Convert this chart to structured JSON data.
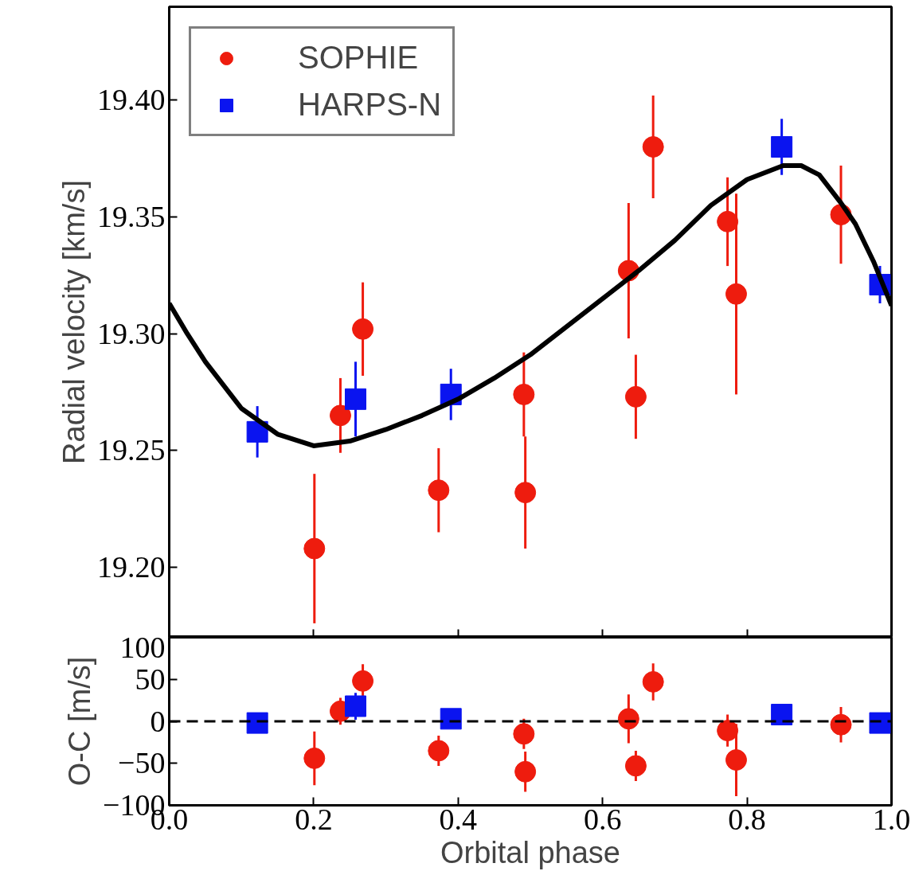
{
  "chart_data": [
    {
      "type": "scatter",
      "ylabel": "Radial velocity [km/s]",
      "xlim": [
        0,
        1
      ],
      "ylim": [
        19.17,
        19.44
      ],
      "xticks": [
        0.2,
        0.4,
        0.6,
        0.8
      ],
      "yticks": [
        {
          "value": 19.2,
          "label": "19.20"
        },
        19.25,
        {
          "value": 19.3,
          "label": "19.30"
        },
        19.35,
        {
          "value": 19.4,
          "label": "19.40"
        }
      ],
      "tick_labels": "y",
      "grid": false,
      "legend": "top left",
      "series": [
        {
          "name": "SOPHIE",
          "color": "#ee1c0e",
          "marker": "circle",
          "x": [
            0.201,
            0.237,
            0.268,
            0.373,
            0.491,
            0.493,
            0.636,
            0.646,
            0.67,
            0.773,
            0.785,
            0.93
          ],
          "values": [
            19.208,
            19.265,
            19.302,
            19.233,
            19.274,
            19.232,
            19.327,
            19.273,
            19.38,
            19.348,
            19.317,
            19.351
          ],
          "errors": [
            0.032,
            0.016,
            0.02,
            0.018,
            0.018,
            0.024,
            0.029,
            0.018,
            0.022,
            0.019,
            0.043,
            0.021
          ]
        },
        {
          "name": "HARPS-N",
          "color": "#0a14f0",
          "marker": "square",
          "x": [
            0.122,
            0.258,
            0.39,
            0.848,
            0.984
          ],
          "values": [
            19.258,
            19.272,
            19.274,
            19.38,
            19.321
          ],
          "errors": [
            0.011,
            0.016,
            0.011,
            0.012,
            0.008
          ]
        },
        {
          "type": "line",
          "color": "#000000",
          "marker": "none",
          "line_style": "solid",
          "x": [
            0,
            0.025,
            0.05,
            0.1,
            0.15,
            0.2,
            0.25,
            0.3,
            0.35,
            0.4,
            0.45,
            0.5,
            0.55,
            0.6,
            0.65,
            0.7,
            0.75,
            0.8,
            0.85,
            0.875,
            0.9,
            0.93,
            0.95,
            0.975,
            1.0
          ],
          "values": [
            19.313,
            19.3,
            19.288,
            19.268,
            19.257,
            19.252,
            19.254,
            19.259,
            19.265,
            19.272,
            19.281,
            19.291,
            19.303,
            19.315,
            19.327,
            19.34,
            19.355,
            19.366,
            19.372,
            19.372,
            19.368,
            19.356,
            19.347,
            19.331,
            19.312
          ]
        }
      ]
    },
    {
      "type": "scatter",
      "xlabel": "Orbital phase",
      "ylabel": "O-C [m/s]",
      "xlim": [
        0,
        1
      ],
      "ylim": [
        -100,
        100
      ],
      "xticks": [
        {
          "value": 0,
          "label": "0.0"
        },
        0.2,
        0.4,
        0.6,
        0.8,
        {
          "value": 1,
          "label": "1.0"
        }
      ],
      "yticks": [
        {
          "value": -100,
          "label": "−100"
        },
        {
          "value": -50,
          "label": "−50"
        },
        0,
        50,
        100
      ],
      "grid": false,
      "legend": false,
      "ref_lines": [
        {
          "axis": "y",
          "value": 0,
          "label": null,
          "color": "#000000",
          "line_style": "dashed"
        }
      ],
      "series": [
        {
          "color": "#ee1c0e",
          "marker": "circle",
          "x": [
            0.201,
            0.237,
            0.268,
            0.373,
            0.491,
            0.493,
            0.636,
            0.646,
            0.67,
            0.773,
            0.785,
            0.93
          ],
          "values": [
            -44,
            12,
            48,
            -35,
            -15,
            -60,
            3,
            -53,
            47,
            -11,
            -46,
            -4
          ],
          "errors": [
            32,
            16,
            20,
            18,
            18,
            24,
            29,
            18,
            22,
            19,
            43,
            21
          ]
        },
        {
          "color": "#0a14f0",
          "marker": "square",
          "x": [
            0.122,
            0.258,
            0.39,
            0.848,
            0.984
          ],
          "values": [
            -2,
            18,
            3,
            8,
            -2
          ],
          "errors": [
            11,
            16,
            11,
            12,
            8
          ]
        }
      ]
    }
  ]
}
